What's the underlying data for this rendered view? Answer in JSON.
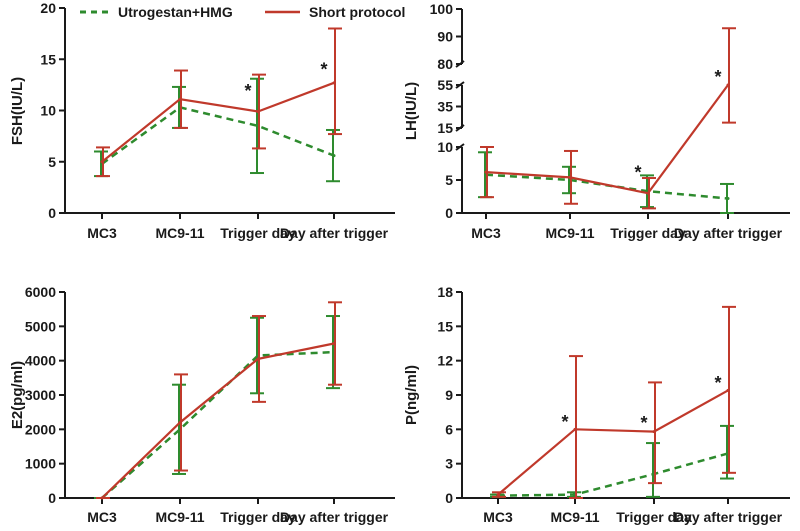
{
  "legend": [
    {
      "name": "Utrogestan+HMG",
      "color": "#2e8b2e",
      "dash": true
    },
    {
      "name": "Short protocol",
      "color": "#c0392b",
      "dash": false
    }
  ],
  "chart_data": [
    {
      "type": "line",
      "ylabel": "FSH(IU/L)",
      "ylim": [
        0,
        20
      ],
      "yticks": [
        0,
        5,
        10,
        15,
        20
      ],
      "categories": [
        "MC3",
        "MC9-11",
        "Trigger day",
        "Day after trigger"
      ],
      "series": [
        {
          "name": "Utrogestan+HMG",
          "values": [
            4.8,
            10.3,
            8.5,
            5.6
          ],
          "err_low": [
            1.2,
            2.0,
            4.6,
            2.5
          ],
          "err_high": [
            1.2,
            2.0,
            4.6,
            2.5
          ]
        },
        {
          "name": "Short protocol",
          "values": [
            5.0,
            11.1,
            9.9,
            12.7
          ],
          "err_low": [
            1.4,
            2.8,
            3.6,
            5.0
          ],
          "err_high": [
            1.4,
            2.8,
            3.6,
            5.3
          ]
        }
      ],
      "stars": [
        {
          "category": 2,
          "value": 11.5,
          "label": "*"
        },
        {
          "category": 3,
          "value": 13.6,
          "label": "*"
        }
      ]
    },
    {
      "type": "line",
      "ylabel": "LH(IU/L)",
      "broken_axis": true,
      "segments": [
        {
          "range": [
            0,
            10
          ],
          "ticks": [
            0,
            5,
            10
          ]
        },
        {
          "range": [
            15,
            55
          ],
          "ticks": [
            15,
            35,
            55
          ]
        },
        {
          "range": [
            80,
            100
          ],
          "ticks": [
            80,
            90,
            100
          ]
        }
      ],
      "categories": [
        "MC3",
        "MC9-11",
        "Trigger day",
        "Day after trigger"
      ],
      "series": [
        {
          "name": "Utrogestan+HMG",
          "values": [
            5.8,
            5.0,
            3.3,
            2.2
          ],
          "err_low": [
            3.4,
            2.0,
            2.4,
            2.2
          ],
          "err_high": [
            3.4,
            2.0,
            2.4,
            2.2
          ]
        },
        {
          "name": "Short protocol",
          "values": [
            6.2,
            5.4,
            3.0,
            55
          ],
          "err_low": [
            3.8,
            4.0,
            2.3,
            35
          ],
          "err_high": [
            3.8,
            4.0,
            2.3,
            38
          ]
        }
      ],
      "stars": [
        {
          "category": 2,
          "value": 5.5,
          "label": "*"
        },
        {
          "category": 3,
          "value": 60,
          "label": "*"
        }
      ]
    },
    {
      "type": "line",
      "ylabel": "E2(pg/ml)",
      "ylim": [
        0,
        6000
      ],
      "yticks": [
        0,
        1000,
        2000,
        3000,
        4000,
        5000,
        6000
      ],
      "categories": [
        "MC3",
        "MC9-11",
        "Trigger day",
        "Day after trigger"
      ],
      "series": [
        {
          "name": "Utrogestan+HMG",
          "values": [
            0,
            2000,
            4150,
            4250
          ],
          "err_low": [
            0,
            1300,
            1100,
            1050
          ],
          "err_high": [
            0,
            1300,
            1100,
            1050
          ]
        },
        {
          "name": "Short protocol",
          "values": [
            0,
            2200,
            4050,
            4500
          ],
          "err_low": [
            0,
            1400,
            1250,
            1200
          ],
          "err_high": [
            0,
            1400,
            1250,
            1200
          ]
        }
      ],
      "stars": []
    },
    {
      "type": "line",
      "ylabel": "P(ng/ml)",
      "ylim": [
        0,
        18
      ],
      "yticks": [
        0,
        3,
        6,
        9,
        12,
        15,
        18
      ],
      "categories": [
        "MC3",
        "MC9-11",
        "Trigger day",
        "Day after trigger"
      ],
      "series": [
        {
          "name": "Utrogestan+HMG",
          "values": [
            0.2,
            0.3,
            2.1,
            3.9
          ],
          "err_low": [
            0.1,
            0.2,
            2.0,
            2.2
          ],
          "err_high": [
            0.1,
            0.2,
            2.7,
            2.4
          ]
        },
        {
          "name": "Short protocol",
          "values": [
            0.3,
            6.0,
            5.8,
            9.4
          ],
          "err_low": [
            0.2,
            6.0,
            4.5,
            7.2
          ],
          "err_high": [
            0.2,
            6.4,
            4.3,
            7.3
          ]
        }
      ],
      "stars": [
        {
          "category": 1,
          "value": 6.3,
          "label": "*"
        },
        {
          "category": 2,
          "value": 6.2,
          "label": "*"
        },
        {
          "category": 3,
          "value": 9.7,
          "label": "*"
        }
      ]
    }
  ]
}
